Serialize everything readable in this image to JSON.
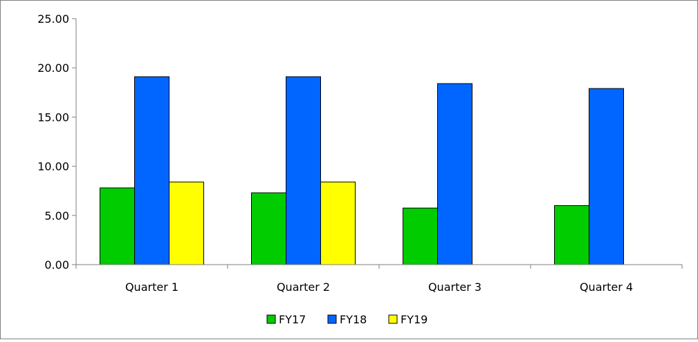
{
  "chart_data": {
    "type": "bar",
    "categories": [
      "Quarter 1",
      "Quarter 2",
      "Quarter 3",
      "Quarter 4"
    ],
    "series": [
      {
        "name": "FY17",
        "color": "#00cc00",
        "values": [
          7.8,
          7.3,
          5.75,
          6.0
        ]
      },
      {
        "name": "FY18",
        "color": "#0066ff",
        "values": [
          19.1,
          19.1,
          18.4,
          17.9
        ]
      },
      {
        "name": "FY19",
        "color": "#ffff00",
        "values": [
          8.4,
          8.4,
          null,
          null
        ]
      }
    ],
    "ylim": [
      0,
      25
    ],
    "yticks": [
      "0.00",
      "5.00",
      "10.00",
      "15.00",
      "20.00",
      "25.00"
    ],
    "ytick_values": [
      0,
      5,
      10,
      15,
      20,
      25
    ],
    "grid": false,
    "legend_position": "bottom"
  }
}
